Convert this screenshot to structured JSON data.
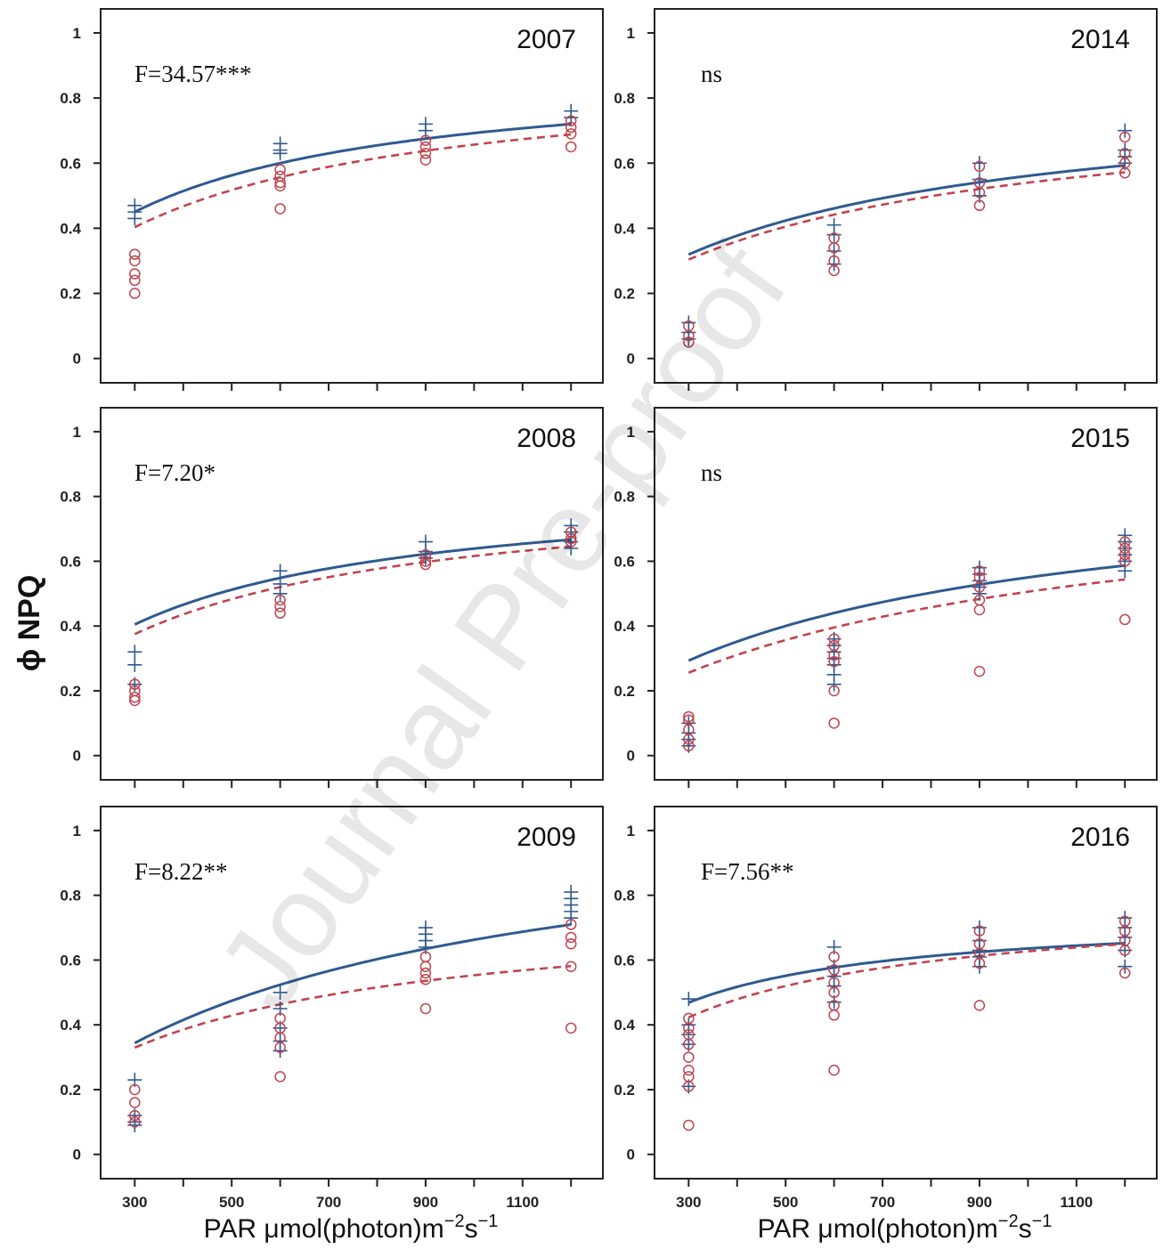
{
  "figure": {
    "ylabel": "ϕ NPQ",
    "xlabel_main": "PAR μmol(photon)m",
    "xlabel_sup1": "−2",
    "xlabel_mid": "s",
    "xlabel_sup2": "−1",
    "watermark": "Journal Pre-proof",
    "colors": {
      "series_plus": "#2f5a8f",
      "series_circle": "#c0444f",
      "axis": "#222222"
    }
  },
  "chart_data": [
    {
      "type": "scatter",
      "title": "2007",
      "annotation": "F=34.57***",
      "xlim": [
        270,
        1240
      ],
      "ylim": [
        -0.02,
        1.03
      ],
      "x_ticks": [
        300,
        500,
        700,
        900,
        1100
      ],
      "y_ticks": [
        0,
        0.2,
        0.4,
        0.6,
        0.8,
        1
      ],
      "series": [
        {
          "marker": "plus",
          "line": "solid",
          "vmax": 0.9,
          "k": 300,
          "points": [
            [
              300,
              0.47
            ],
            [
              300,
              0.45
            ],
            [
              300,
              0.43
            ],
            [
              600,
              0.66
            ],
            [
              600,
              0.64
            ],
            [
              600,
              0.63
            ],
            [
              900,
              0.72
            ],
            [
              900,
              0.7
            ],
            [
              1200,
              0.76
            ],
            [
              1200,
              0.74
            ]
          ]
        },
        {
          "marker": "circle",
          "line": "dashed",
          "vmax": 0.9,
          "k": 370,
          "points": [
            [
              300,
              0.32
            ],
            [
              300,
              0.3
            ],
            [
              300,
              0.26
            ],
            [
              300,
              0.24
            ],
            [
              300,
              0.2
            ],
            [
              600,
              0.58
            ],
            [
              600,
              0.56
            ],
            [
              600,
              0.54
            ],
            [
              600,
              0.53
            ],
            [
              600,
              0.46
            ],
            [
              900,
              0.67
            ],
            [
              900,
              0.65
            ],
            [
              900,
              0.63
            ],
            [
              900,
              0.61
            ],
            [
              1200,
              0.73
            ],
            [
              1200,
              0.71
            ],
            [
              1200,
              0.69
            ],
            [
              1200,
              0.65
            ]
          ]
        }
      ]
    },
    {
      "type": "scatter",
      "title": "2014",
      "annotation": "ns",
      "xlim": [
        270,
        1240
      ],
      "ylim": [
        -0.02,
        1.03
      ],
      "x_ticks": [
        300,
        500,
        700,
        900,
        1100
      ],
      "y_ticks": [
        0,
        0.2,
        0.4,
        0.6,
        0.8,
        1
      ],
      "series": [
        {
          "marker": "plus",
          "line": "solid",
          "vmax": 0.83,
          "k": 480,
          "points": [
            [
              300,
              0.11
            ],
            [
              300,
              0.08
            ],
            [
              300,
              0.06
            ],
            [
              600,
              0.41
            ],
            [
              600,
              0.38
            ],
            [
              600,
              0.33
            ],
            [
              600,
              0.29
            ],
            [
              900,
              0.6
            ],
            [
              900,
              0.55
            ],
            [
              900,
              0.5
            ],
            [
              1200,
              0.7
            ],
            [
              1200,
              0.64
            ],
            [
              1200,
              0.62
            ],
            [
              1200,
              0.6
            ]
          ]
        },
        {
          "marker": "circle",
          "line": "dashed",
          "vmax": 0.81,
          "k": 500,
          "points": [
            [
              300,
              0.1
            ],
            [
              300,
              0.07
            ],
            [
              300,
              0.05
            ],
            [
              600,
              0.37
            ],
            [
              600,
              0.34
            ],
            [
              600,
              0.3
            ],
            [
              600,
              0.27
            ],
            [
              900,
              0.59
            ],
            [
              900,
              0.54
            ],
            [
              900,
              0.51
            ],
            [
              900,
              0.47
            ],
            [
              1200,
              0.68
            ],
            [
              1200,
              0.63
            ],
            [
              1200,
              0.6
            ],
            [
              1200,
              0.57
            ]
          ]
        }
      ]
    },
    {
      "type": "scatter",
      "title": "2008",
      "annotation": "F=7.20*",
      "xlim": [
        270,
        1240
      ],
      "ylim": [
        -0.02,
        1.03
      ],
      "x_ticks": [
        300,
        500,
        700,
        900,
        1100
      ],
      "y_ticks": [
        0,
        0.2,
        0.4,
        0.6,
        0.8,
        1
      ],
      "series": [
        {
          "marker": "plus",
          "line": "solid",
          "vmax": 0.85,
          "k": 330,
          "points": [
            [
              300,
              0.32
            ],
            [
              300,
              0.28
            ],
            [
              300,
              0.22
            ],
            [
              600,
              0.57
            ],
            [
              600,
              0.53
            ],
            [
              600,
              0.5
            ],
            [
              900,
              0.66
            ],
            [
              900,
              0.63
            ],
            [
              900,
              0.61
            ],
            [
              1200,
              0.71
            ],
            [
              1200,
              0.69
            ],
            [
              1200,
              0.66
            ],
            [
              1200,
              0.64
            ]
          ]
        },
        {
          "marker": "circle",
          "line": "dashed",
          "vmax": 0.85,
          "k": 380,
          "points": [
            [
              300,
              0.22
            ],
            [
              300,
              0.2
            ],
            [
              300,
              0.18
            ],
            [
              300,
              0.17
            ],
            [
              600,
              0.48
            ],
            [
              600,
              0.46
            ],
            [
              600,
              0.44
            ],
            [
              900,
              0.62
            ],
            [
              900,
              0.6
            ],
            [
              900,
              0.59
            ],
            [
              1200,
              0.69
            ],
            [
              1200,
              0.67
            ],
            [
              1200,
              0.66
            ]
          ]
        }
      ]
    },
    {
      "type": "scatter",
      "title": "2015",
      "annotation": "ns",
      "xlim": [
        270,
        1240
      ],
      "ylim": [
        -0.02,
        1.03
      ],
      "x_ticks": [
        300,
        500,
        700,
        900,
        1100
      ],
      "y_ticks": [
        0,
        0.2,
        0.4,
        0.6,
        0.8,
        1
      ],
      "series": [
        {
          "marker": "plus",
          "line": "solid",
          "vmax": 0.88,
          "k": 600,
          "points": [
            [
              300,
              0.1
            ],
            [
              300,
              0.07
            ],
            [
              300,
              0.05
            ],
            [
              300,
              0.03
            ],
            [
              600,
              0.36
            ],
            [
              600,
              0.34
            ],
            [
              600,
              0.32
            ],
            [
              600,
              0.3
            ],
            [
              600,
              0.28
            ],
            [
              600,
              0.25
            ],
            [
              600,
              0.22
            ],
            [
              900,
              0.58
            ],
            [
              900,
              0.56
            ],
            [
              900,
              0.54
            ],
            [
              900,
              0.52
            ],
            [
              900,
              0.5
            ],
            [
              1200,
              0.68
            ],
            [
              1200,
              0.66
            ],
            [
              1200,
              0.64
            ],
            [
              1200,
              0.62
            ],
            [
              1200,
              0.6
            ],
            [
              1200,
              0.57
            ]
          ]
        },
        {
          "marker": "circle",
          "line": "dashed",
          "vmax": 0.87,
          "k": 720,
          "points": [
            [
              300,
              0.12
            ],
            [
              300,
              0.11
            ],
            [
              300,
              0.08
            ],
            [
              300,
              0.05
            ],
            [
              300,
              0.03
            ],
            [
              600,
              0.36
            ],
            [
              600,
              0.34
            ],
            [
              600,
              0.31
            ],
            [
              600,
              0.29
            ],
            [
              600,
              0.2
            ],
            [
              600,
              0.1
            ],
            [
              900,
              0.57
            ],
            [
              900,
              0.55
            ],
            [
              900,
              0.52
            ],
            [
              900,
              0.48
            ],
            [
              900,
              0.45
            ],
            [
              900,
              0.26
            ],
            [
              1200,
              0.66
            ],
            [
              1200,
              0.64
            ],
            [
              1200,
              0.62
            ],
            [
              1200,
              0.6
            ],
            [
              1200,
              0.42
            ]
          ]
        }
      ]
    },
    {
      "type": "scatter",
      "title": "2009",
      "annotation": "F=8.22**",
      "xlim": [
        270,
        1240
      ],
      "ylim": [
        -0.02,
        1.03
      ],
      "x_ticks": [
        300,
        500,
        700,
        900,
        1100
      ],
      "y_ticks": [
        0,
        0.2,
        0.4,
        0.6,
        0.8,
        1
      ],
      "series": [
        {
          "marker": "plus",
          "line": "solid",
          "vmax": 1.1,
          "k": 660,
          "points": [
            [
              300,
              0.23
            ],
            [
              300,
              0.12
            ],
            [
              300,
              0.1
            ],
            [
              300,
              0.09
            ],
            [
              600,
              0.5
            ],
            [
              600,
              0.45
            ],
            [
              600,
              0.39
            ],
            [
              600,
              0.35
            ],
            [
              600,
              0.32
            ],
            [
              900,
              0.7
            ],
            [
              900,
              0.68
            ],
            [
              900,
              0.66
            ],
            [
              900,
              0.64
            ],
            [
              1200,
              0.81
            ],
            [
              1200,
              0.79
            ],
            [
              1200,
              0.77
            ],
            [
              1200,
              0.75
            ],
            [
              1200,
              0.73
            ]
          ]
        },
        {
          "marker": "circle",
          "line": "dashed",
          "vmax": 0.78,
          "k": 410,
          "points": [
            [
              300,
              0.2
            ],
            [
              300,
              0.16
            ],
            [
              300,
              0.12
            ],
            [
              300,
              0.1
            ],
            [
              600,
              0.42
            ],
            [
              600,
              0.39
            ],
            [
              600,
              0.36
            ],
            [
              600,
              0.33
            ],
            [
              600,
              0.24
            ],
            [
              900,
              0.61
            ],
            [
              900,
              0.58
            ],
            [
              900,
              0.56
            ],
            [
              900,
              0.54
            ],
            [
              900,
              0.45
            ],
            [
              1200,
              0.71
            ],
            [
              1200,
              0.67
            ],
            [
              1200,
              0.65
            ],
            [
              1200,
              0.58
            ],
            [
              1200,
              0.39
            ]
          ]
        }
      ]
    },
    {
      "type": "scatter",
      "title": "2016",
      "annotation": "F=7.56**",
      "xlim": [
        270,
        1240
      ],
      "ylim": [
        -0.02,
        1.03
      ],
      "x_ticks": [
        300,
        500,
        700,
        900,
        1100
      ],
      "y_ticks": [
        0,
        0.2,
        0.4,
        0.6,
        0.8,
        1
      ],
      "series": [
        {
          "marker": "plus",
          "line": "solid",
          "vmax": 0.75,
          "k": 180,
          "points": [
            [
              300,
              0.48
            ],
            [
              300,
              0.4
            ],
            [
              300,
              0.37
            ],
            [
              300,
              0.34
            ],
            [
              300,
              0.21
            ],
            [
              600,
              0.64
            ],
            [
              600,
              0.58
            ],
            [
              600,
              0.55
            ],
            [
              600,
              0.52
            ],
            [
              600,
              0.47
            ],
            [
              900,
              0.7
            ],
            [
              900,
              0.66
            ],
            [
              900,
              0.63
            ],
            [
              900,
              0.61
            ],
            [
              900,
              0.58
            ],
            [
              1200,
              0.73
            ],
            [
              1200,
              0.7
            ],
            [
              1200,
              0.67
            ],
            [
              1200,
              0.63
            ],
            [
              1200,
              0.58
            ]
          ]
        },
        {
          "marker": "circle",
          "line": "dashed",
          "vmax": 0.79,
          "k": 260,
          "points": [
            [
              300,
              0.42
            ],
            [
              300,
              0.39
            ],
            [
              300,
              0.37
            ],
            [
              300,
              0.34
            ],
            [
              300,
              0.3
            ],
            [
              300,
              0.26
            ],
            [
              300,
              0.24
            ],
            [
              300,
              0.21
            ],
            [
              300,
              0.09
            ],
            [
              600,
              0.61
            ],
            [
              600,
              0.57
            ],
            [
              600,
              0.53
            ],
            [
              600,
              0.5
            ],
            [
              600,
              0.46
            ],
            [
              600,
              0.43
            ],
            [
              600,
              0.26
            ],
            [
              900,
              0.69
            ],
            [
              900,
              0.65
            ],
            [
              900,
              0.62
            ],
            [
              900,
              0.59
            ],
            [
              900,
              0.46
            ],
            [
              1200,
              0.72
            ],
            [
              1200,
              0.69
            ],
            [
              1200,
              0.66
            ],
            [
              1200,
              0.63
            ],
            [
              1200,
              0.56
            ]
          ]
        }
      ]
    }
  ]
}
